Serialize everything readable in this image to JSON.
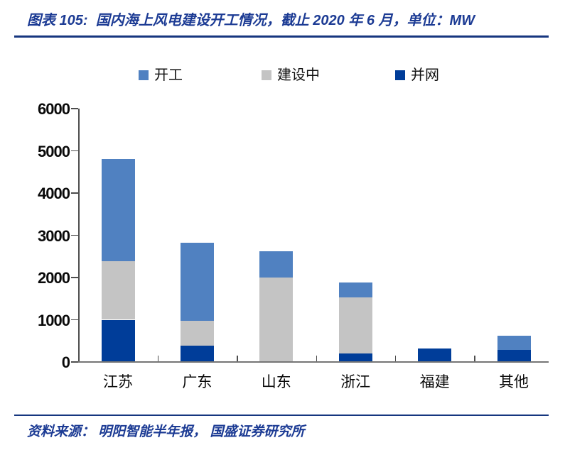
{
  "header": {
    "title": "图表 105:  国内海上风电建设开工情况，截止 2020 年 6 月，单位：MW"
  },
  "chart_data": {
    "type": "bar",
    "stacked": true,
    "title": "国内海上风电建设开工情况",
    "subtitle": "截止 2020 年 6 月",
    "unit": "MW",
    "figure_number": "图表 105",
    "categories": [
      "江苏",
      "广东",
      "山东",
      "浙江",
      "福建",
      "其他"
    ],
    "series": [
      {
        "name": "开工",
        "color": "#5081C1",
        "values": [
          2430,
          1840,
          620,
          360,
          0,
          330
        ]
      },
      {
        "name": "建设中",
        "color": "#C4C4C4",
        "values": [
          1380,
          600,
          2000,
          1330,
          0,
          0
        ]
      },
      {
        "name": "并网",
        "color": "#003D99",
        "values": [
          1000,
          380,
          0,
          200,
          320,
          290
        ]
      }
    ],
    "stack_order_bottom_to_top": [
      "并网",
      "建设中",
      "开工"
    ],
    "xlabel": "",
    "ylabel": "",
    "ylim": [
      0,
      6000
    ],
    "yticks": [
      0,
      1000,
      2000,
      3000,
      4000,
      5000,
      6000
    ],
    "grid": false,
    "legend_position": "top"
  },
  "footer": {
    "source": "资料来源： 明阳智能半年报， 国盛证券研究所"
  },
  "colors": {
    "title_text": "#1C3B94",
    "rule": "#16367F",
    "axis": "#4d4d4d",
    "baseline": "#757575",
    "label_text": "#0a0a0a"
  }
}
